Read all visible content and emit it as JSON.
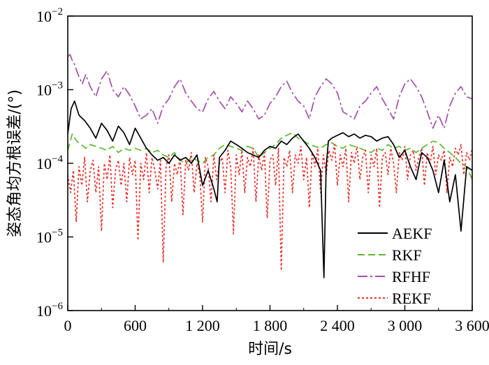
{
  "chart_data": {
    "type": "line",
    "title": "",
    "xlabel": "时间/s",
    "ylabel": "姿态角均方根误差/(°)",
    "xlim": [
      0,
      3600
    ],
    "ylim": [
      1e-06,
      0.01
    ],
    "yscale": "log",
    "grid": false,
    "legend_position": "bottom-right",
    "x_ticks": [
      {
        "value": 0,
        "label": "0"
      },
      {
        "value": 600,
        "label": "600"
      },
      {
        "value": 1200,
        "label": "1 200"
      },
      {
        "value": 1800,
        "label": "1 800"
      },
      {
        "value": 2400,
        "label": "2 400"
      },
      {
        "value": 3000,
        "label": "3 000"
      },
      {
        "value": 3600,
        "label": "3 600"
      }
    ],
    "y_ticks": [
      {
        "value": 0.01,
        "base": "10",
        "exp": "−2"
      },
      {
        "value": 0.001,
        "base": "10",
        "exp": "−3"
      },
      {
        "value": 0.0001,
        "base": "10",
        "exp": "−4"
      },
      {
        "value": 1e-05,
        "base": "10",
        "exp": "−5"
      },
      {
        "value": 1e-06,
        "base": "10",
        "exp": "−6"
      }
    ],
    "series": [
      {
        "name": "AEKF",
        "color": "#000000",
        "dash": "solid",
        "x": [
          0,
          30,
          60,
          100,
          150,
          200,
          250,
          300,
          350,
          400,
          450,
          500,
          550,
          600,
          650,
          700,
          750,
          800,
          850,
          900,
          950,
          1000,
          1050,
          1100,
          1150,
          1200,
          1250,
          1300,
          1330,
          1350,
          1400,
          1450,
          1500,
          1550,
          1600,
          1650,
          1700,
          1750,
          1800,
          1850,
          1900,
          1950,
          2000,
          2050,
          2100,
          2150,
          2200,
          2250,
          2280,
          2300,
          2320,
          2350,
          2400,
          2450,
          2500,
          2550,
          2600,
          2650,
          2700,
          2750,
          2800,
          2850,
          2900,
          2950,
          3000,
          3050,
          3100,
          3150,
          3200,
          3250,
          3300,
          3350,
          3400,
          3450,
          3500,
          3550,
          3600
        ],
        "y": [
          0.00025,
          0.00055,
          0.0007,
          0.00045,
          0.00038,
          0.0003,
          0.00022,
          0.00035,
          0.00028,
          0.0002,
          0.00032,
          0.00026,
          0.00018,
          0.0003,
          0.00022,
          0.00016,
          0.00013,
          0.00011,
          0.00012,
          0.0001,
          0.00013,
          0.00011,
          0.00012,
          0.0001,
          0.00013,
          5e-05,
          8e-05,
          4.5e-05,
          3e-05,
          0.00012,
          0.00015,
          0.0002,
          0.00018,
          0.00016,
          0.00014,
          0.00013,
          0.00012,
          0.00015,
          0.00017,
          0.00016,
          0.0002,
          0.00018,
          0.00022,
          0.00025,
          0.0002,
          0.00016,
          0.00012,
          8e-05,
          2.8e-06,
          9e-05,
          0.0002,
          0.00022,
          0.00024,
          0.00026,
          0.00023,
          0.00025,
          0.00022,
          0.00024,
          0.00023,
          0.0002,
          0.00022,
          0.00023,
          0.00018,
          0.00012,
          0.00015,
          9e-05,
          6e-05,
          0.00014,
          0.00012,
          8e-05,
          4e-05,
          0.00011,
          3e-05,
          7e-05,
          1.2e-05,
          9e-05,
          8e-05
        ]
      },
      {
        "name": "RKF",
        "color": "#5cb82e",
        "dash": "10,5",
        "x": [
          0,
          40,
          80,
          120,
          160,
          200,
          250,
          300,
          350,
          400,
          450,
          500,
          550,
          600,
          650,
          700,
          750,
          800,
          850,
          900,
          950,
          1000,
          1050,
          1100,
          1150,
          1200,
          1250,
          1300,
          1350,
          1400,
          1450,
          1500,
          1550,
          1600,
          1650,
          1700,
          1750,
          1800,
          1850,
          1900,
          1950,
          2000,
          2050,
          2100,
          2150,
          2200,
          2250,
          2300,
          2350,
          2400,
          2450,
          2500,
          2550,
          2600,
          2650,
          2700,
          2750,
          2800,
          2850,
          2900,
          2950,
          3000,
          3050,
          3100,
          3150,
          3200,
          3250,
          3300,
          3350,
          3400,
          3450,
          3500,
          3550,
          3600
        ],
        "y": [
          0.00015,
          0.00025,
          0.0002,
          0.00018,
          0.00016,
          0.00018,
          0.00017,
          0.00016,
          0.00015,
          0.00017,
          0.00014,
          0.00016,
          0.00015,
          0.00016,
          0.00015,
          0.00016,
          0.00014,
          0.00015,
          0.00013,
          0.00012,
          0.00014,
          0.00011,
          0.0001,
          0.00012,
          0.00011,
          0.0001,
          0.00012,
          0.00013,
          0.00016,
          0.00018,
          0.00017,
          0.00016,
          0.00015,
          0.00017,
          0.00016,
          0.00012,
          0.00014,
          0.00016,
          0.00018,
          0.00022,
          0.00024,
          0.00026,
          0.00022,
          0.0002,
          0.00018,
          0.00017,
          0.00016,
          0.00018,
          0.00019,
          0.00017,
          0.00016,
          0.00018,
          0.00017,
          0.00016,
          0.00015,
          0.00014,
          0.00016,
          0.00015,
          0.00018,
          0.00016,
          0.00017,
          0.00015,
          0.00016,
          0.00014,
          0.00016,
          0.00018,
          0.0002,
          0.00019,
          0.00016,
          0.00014,
          0.00012,
          0.0001,
          9e-05,
          6e-05
        ]
      },
      {
        "name": "RFHF",
        "color": "#a24fa8",
        "dash": "14,4,3,4",
        "x": [
          0,
          20,
          40,
          60,
          80,
          100,
          130,
          160,
          200,
          250,
          300,
          350,
          400,
          450,
          500,
          550,
          600,
          650,
          700,
          750,
          800,
          850,
          900,
          950,
          1000,
          1050,
          1100,
          1150,
          1200,
          1250,
          1300,
          1350,
          1400,
          1450,
          1500,
          1550,
          1600,
          1650,
          1700,
          1750,
          1800,
          1850,
          1900,
          1950,
          2000,
          2050,
          2100,
          2150,
          2200,
          2250,
          2300,
          2350,
          2400,
          2450,
          2500,
          2550,
          2600,
          2650,
          2700,
          2750,
          2800,
          2850,
          2900,
          2950,
          3000,
          3050,
          3100,
          3150,
          3200,
          3250,
          3300,
          3350,
          3400,
          3450,
          3500,
          3550,
          3600
        ],
        "y": [
          0.0028,
          0.003,
          0.0025,
          0.0022,
          0.0018,
          0.0015,
          0.0012,
          0.0016,
          0.0011,
          0.0008,
          0.0014,
          0.0018,
          0.001,
          0.0008,
          0.0011,
          0.00085,
          0.0006,
          0.0004,
          0.00045,
          0.00055,
          0.00035,
          0.0006,
          0.00075,
          0.0011,
          0.0014,
          0.0009,
          0.0007,
          0.00055,
          0.0005,
          0.00075,
          0.00095,
          0.0007,
          0.00055,
          0.0008,
          0.00065,
          0.0005,
          0.0007,
          0.00055,
          0.0004,
          0.00045,
          0.00065,
          0.0008,
          0.0011,
          0.0013,
          0.0009,
          0.0007,
          0.0006,
          0.0004,
          0.0008,
          0.0011,
          0.0014,
          0.0012,
          0.0009,
          0.0005,
          0.00045,
          0.0004,
          0.0006,
          0.0007,
          0.0009,
          0.0011,
          0.00075,
          0.00055,
          0.0004,
          0.0008,
          0.0012,
          0.0014,
          0.0011,
          0.0008,
          0.0005,
          0.0003,
          0.00045,
          0.0003,
          0.0006,
          0.0009,
          0.0011,
          0.0008,
          0.00075
        ]
      },
      {
        "name": "REKF",
        "color": "#e8302a",
        "dash": "3,3",
        "x": [
          0,
          25,
          50,
          75,
          100,
          125,
          150,
          175,
          200,
          225,
          250,
          275,
          300,
          325,
          350,
          375,
          400,
          425,
          450,
          475,
          500,
          525,
          550,
          575,
          600,
          625,
          650,
          675,
          700,
          725,
          750,
          775,
          800,
          825,
          850,
          875,
          900,
          925,
          950,
          975,
          1000,
          1025,
          1050,
          1075,
          1100,
          1125,
          1150,
          1175,
          1200,
          1225,
          1250,
          1275,
          1300,
          1325,
          1350,
          1375,
          1400,
          1425,
          1450,
          1475,
          1500,
          1525,
          1550,
          1575,
          1600,
          1625,
          1650,
          1675,
          1700,
          1725,
          1750,
          1775,
          1800,
          1825,
          1850,
          1875,
          1900,
          1925,
          1950,
          1975,
          2000,
          2025,
          2050,
          2075,
          2100,
          2125,
          2150,
          2175,
          2200,
          2225,
          2250,
          2275,
          2300,
          2325,
          2350,
          2375,
          2400,
          2425,
          2450,
          2475,
          2500,
          2525,
          2550,
          2575,
          2600,
          2625,
          2650,
          2675,
          2700,
          2725,
          2750,
          2775,
          2800,
          2825,
          2850,
          2875,
          2900,
          2925,
          2950,
          2975,
          3000,
          3025,
          3050,
          3075,
          3100,
          3125,
          3150,
          3175,
          3200,
          3225,
          3250,
          3275,
          3300,
          3325,
          3350,
          3375,
          3400,
          3425,
          3450,
          3475,
          3500,
          3525,
          3550,
          3575,
          3600
        ],
        "y": [
          7e-05,
          4e-05,
          8e-05,
          1.6e-05,
          9e-05,
          5e-05,
          0.00012,
          3e-05,
          8e-05,
          0.00011,
          4e-05,
          9e-05,
          1.2e-05,
          0.0001,
          6e-05,
          0.00013,
          2.5e-05,
          8e-05,
          0.00011,
          5e-05,
          0.0001,
          3e-05,
          0.00012,
          7e-05,
          0.00011,
          9e-06,
          0.0001,
          6e-05,
          0.00014,
          4e-05,
          0.00012,
          8e-05,
          4.5e-05,
          0.00011,
          4.5e-06,
          9e-05,
          0.00013,
          3e-05,
          0.0001,
          7e-05,
          0.00012,
          2e-05,
          0.00011,
          8e-05,
          0.00014,
          4e-05,
          0.0001,
          7e-05,
          1.6e-05,
          0.00012,
          9e-05,
          3e-05,
          0.00013,
          6e-05,
          0.0001,
          0.00012,
          4e-05,
          0.00015,
          9e-05,
          1.1e-05,
          0.00013,
          7e-05,
          0.00015,
          4e-05,
          0.00012,
          9e-05,
          0.00016,
          3e-05,
          0.00013,
          8e-05,
          0.00014,
          1.8e-05,
          0.00011,
          0.00013,
          5e-05,
          0.00016,
          3.5e-06,
          0.00012,
          9e-05,
          0.00015,
          4e-05,
          0.00013,
          0.0001,
          0.00017,
          6e-05,
          0.00012,
          2.5e-05,
          0.00014,
          9e-05,
          0.00016,
          4e-05,
          0.00013,
          7e-05,
          0.00015,
          0.00011,
          0.00018,
          5e-05,
          0.00013,
          9e-05,
          0.00016,
          3e-05,
          0.00014,
          0.0001,
          0.00017,
          6e-05,
          0.00012,
          0.00015,
          4e-05,
          0.00013,
          9e-05,
          0.00016,
          2.5e-05,
          0.00012,
          0.00014,
          7e-05,
          0.00016,
          0.0001,
          4e-05,
          0.00014,
          0.00011,
          0.00017,
          6e-05,
          0.00013,
          0.00015,
          8e-05,
          0.00012,
          0.00016,
          5e-05,
          0.00014,
          0.0001,
          0.00017,
          7e-05,
          0.00013,
          0.00011,
          0.00015,
          4e-05,
          0.00012,
          9e-05,
          0.00016,
          0.00013,
          0.00018,
          7e-05,
          0.00014,
          0.00011,
          0.00016
        ]
      }
    ]
  }
}
